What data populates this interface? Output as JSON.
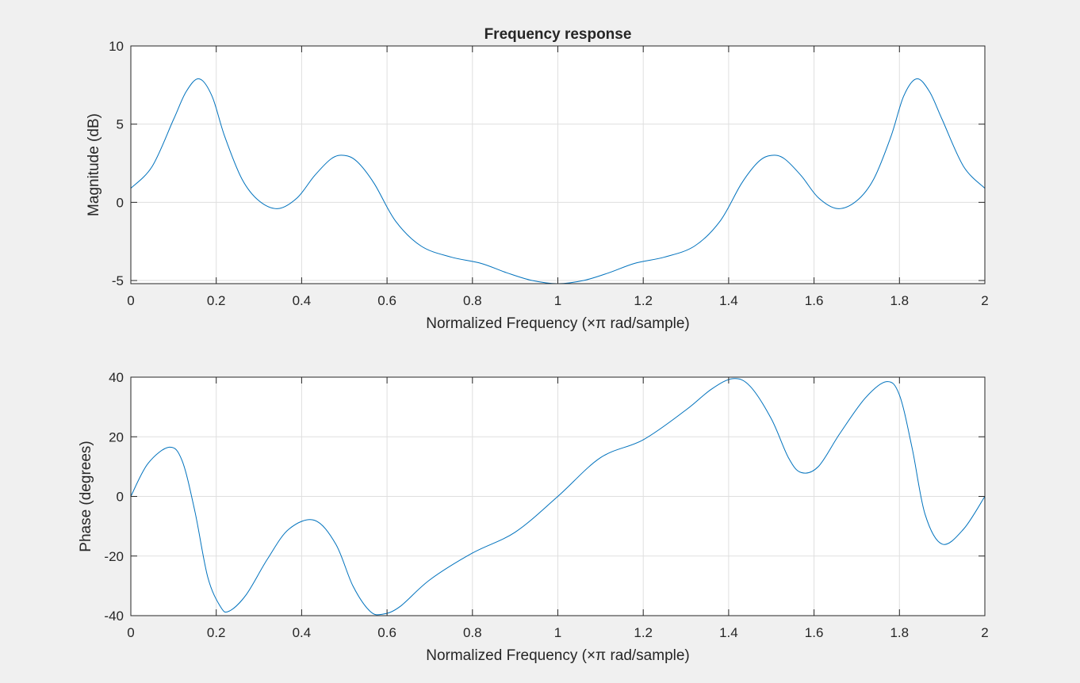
{
  "chart_data": [
    {
      "type": "line",
      "title": "Frequency response",
      "xlabel": "Normalized Frequency  (×π rad/sample)",
      "ylabel": "Magnitude (dB)",
      "xlim": [
        0,
        2
      ],
      "ylim": [
        -5.2,
        10
      ],
      "xticks": [
        0,
        0.2,
        0.4,
        0.6,
        0.8,
        1,
        1.2,
        1.4,
        1.6,
        1.8,
        2
      ],
      "xtick_labels": [
        "0",
        "0.2",
        "0.4",
        "0.6",
        "0.8",
        "1",
        "1.2",
        "1.4",
        "1.6",
        "1.8",
        "2"
      ],
      "yticks": [
        -5,
        0,
        5,
        10
      ],
      "ytick_labels": [
        "-5",
        "0",
        "5",
        "10"
      ],
      "grid": true,
      "line_color": "#0072bd",
      "series": [
        {
          "x": [
            0,
            0.05,
            0.1,
            0.13,
            0.16,
            0.19,
            0.22,
            0.26,
            0.3,
            0.345,
            0.39,
            0.43,
            0.47,
            0.5,
            0.53,
            0.57,
            0.62,
            0.68,
            0.75,
            0.82,
            0.88,
            0.94,
            1,
            1.06,
            1.12,
            1.18,
            1.25,
            1.32,
            1.38,
            1.43,
            1.47,
            1.5,
            1.53,
            1.57,
            1.61,
            1.655,
            1.7,
            1.74,
            1.78,
            1.81,
            1.84,
            1.87,
            1.9,
            1.95,
            2
          ],
          "y": [
            0.9,
            2.3,
            5.3,
            7.1,
            7.9,
            6.8,
            4.2,
            1.5,
            0.1,
            -0.4,
            0.3,
            1.7,
            2.8,
            3.0,
            2.6,
            1.2,
            -1.2,
            -2.8,
            -3.5,
            -3.9,
            -4.5,
            -5.0,
            -5.2,
            -5.0,
            -4.5,
            -3.9,
            -3.5,
            -2.8,
            -1.2,
            1.2,
            2.6,
            3.0,
            2.8,
            1.7,
            0.3,
            -0.4,
            0.1,
            1.5,
            4.2,
            6.8,
            7.9,
            7.1,
            5.3,
            2.3,
            0.9
          ]
        }
      ]
    },
    {
      "type": "line",
      "title": "",
      "xlabel": "Normalized Frequency  (×π rad/sample)",
      "ylabel": "Phase (degrees)",
      "xlim": [
        0,
        2
      ],
      "ylim": [
        -40,
        40
      ],
      "xticks": [
        0,
        0.2,
        0.4,
        0.6,
        0.8,
        1,
        1.2,
        1.4,
        1.6,
        1.8,
        2
      ],
      "xtick_labels": [
        "0",
        "0.2",
        "0.4",
        "0.6",
        "0.8",
        "1",
        "1.2",
        "1.4",
        "1.6",
        "1.8",
        "2"
      ],
      "yticks": [
        -40,
        -20,
        0,
        20,
        40
      ],
      "ytick_labels": [
        "-40",
        "-20",
        "0",
        "20",
        "40"
      ],
      "grid": true,
      "line_color": "#0072bd",
      "series": [
        {
          "x": [
            0,
            0.04,
            0.09,
            0.12,
            0.15,
            0.18,
            0.21,
            0.23,
            0.27,
            0.32,
            0.37,
            0.43,
            0.48,
            0.52,
            0.56,
            0.59,
            0.63,
            0.7,
            0.8,
            0.9,
            1,
            1.1,
            1.2,
            1.3,
            1.36,
            1.41,
            1.45,
            1.5,
            1.54,
            1.57,
            1.61,
            1.66,
            1.72,
            1.77,
            1.8,
            1.83,
            1.86,
            1.9,
            1.95,
            2
          ],
          "y": [
            0,
            11,
            16.5,
            12,
            -5,
            -27,
            -37,
            -38.5,
            -33,
            -21,
            -11,
            -8,
            -16,
            -30,
            -38.5,
            -39.5,
            -37,
            -28,
            -19,
            -12,
            0,
            13,
            19,
            29,
            36,
            39.5,
            37,
            26,
            13,
            8,
            10,
            21,
            33,
            38.5,
            34,
            16,
            -6,
            -16,
            -11,
            0
          ]
        }
      ]
    }
  ]
}
